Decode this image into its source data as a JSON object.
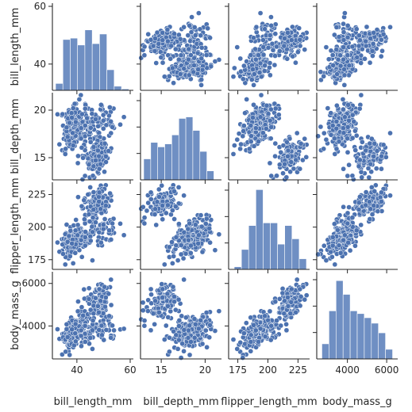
{
  "chart_data": {
    "type": "scatter",
    "title": "",
    "variables": [
      {
        "name": "bill_length_mm",
        "label": "bill_length_mm",
        "range": [
          32,
          60
        ],
        "ticks": [
          40,
          60
        ],
        "diag_ticks": [
          40,
          60
        ]
      },
      {
        "name": "bill_depth_mm",
        "label": "bill_depth_mm",
        "range": [
          13,
          21.5
        ],
        "ticks": [
          15,
          20
        ],
        "diag_ticks": [
          15,
          20
        ]
      },
      {
        "name": "flipper_length_mm",
        "label": "flipper_length_mm",
        "range": [
          170,
          232
        ],
        "ticks": [
          175,
          200,
          225
        ],
        "diag_ticks": [
          175,
          200,
          225
        ]
      },
      {
        "name": "body_mass_g",
        "label": "body_mass_g",
        "range": [
          2600,
          6400
        ],
        "ticks": [
          4000,
          6000
        ],
        "diag_ticks": [
          4000,
          6000
        ]
      }
    ],
    "diag_counts_ymax": [
      60,
      55,
      62,
      60
    ],
    "histograms": [
      {
        "variable": "bill_length_mm",
        "bins": [
          32,
          34.75,
          37.5,
          40.25,
          43,
          45.75,
          48.5,
          51.25,
          54,
          56.75,
          59.5
        ],
        "counts": [
          5,
          37,
          38,
          33,
          44,
          34,
          41,
          15,
          3,
          1
        ]
      },
      {
        "variable": "bill_depth_mm",
        "bins": [
          13,
          13.8,
          14.6,
          15.4,
          16.2,
          17,
          17.8,
          18.6,
          19.4,
          20.2,
          21
        ],
        "counts": [
          14,
          25,
          22,
          24,
          30,
          41,
          42,
          33,
          19,
          6
        ]
      },
      {
        "variable": "flipper_length_mm",
        "bins": [
          172,
          178,
          184,
          190,
          196,
          202,
          208,
          214,
          220,
          226,
          232
        ],
        "counts": [
          2,
          15,
          33,
          60,
          35,
          35,
          19,
          33,
          23,
          8
        ]
      },
      {
        "variable": "body_mass_g",
        "bins": [
          2700,
          3060,
          3420,
          3780,
          4140,
          4500,
          4860,
          5220,
          5580,
          5940,
          6300
        ],
        "counts": [
          11,
          35,
          57,
          47,
          35,
          33,
          30,
          26,
          19,
          7
        ]
      }
    ],
    "color": "#4c72b0",
    "hist_color": "#6f8fc3",
    "grid": false
  }
}
